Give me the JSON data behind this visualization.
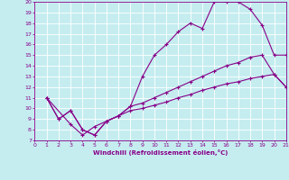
{
  "xlabel": "Windchill (Refroidissement éolien,°C)",
  "bg_color": "#c5edf0",
  "line_color": "#880088",
  "grid_color": "#ffffff",
  "xlim": [
    0,
    21
  ],
  "ylim": [
    7,
    20
  ],
  "xticks": [
    0,
    1,
    2,
    3,
    4,
    5,
    6,
    7,
    8,
    9,
    10,
    11,
    12,
    13,
    14,
    15,
    16,
    17,
    18,
    19,
    20,
    21
  ],
  "yticks": [
    7,
    8,
    9,
    10,
    11,
    12,
    13,
    14,
    15,
    16,
    17,
    18,
    19,
    20
  ],
  "series1_x": [
    1,
    2,
    3,
    4,
    5,
    6,
    7,
    8,
    9,
    10,
    11,
    12,
    13,
    14,
    15,
    16,
    17,
    18,
    19,
    20,
    21
  ],
  "series1_y": [
    11.0,
    9.0,
    9.8,
    8.0,
    7.5,
    8.8,
    9.3,
    10.2,
    13.0,
    15.0,
    16.0,
    17.2,
    18.0,
    17.5,
    20.0,
    20.0,
    20.0,
    19.3,
    17.8,
    15.0,
    15.0
  ],
  "series2_x": [
    1,
    2,
    3,
    4,
    5,
    6,
    7,
    8,
    9,
    10,
    11,
    12,
    13,
    14,
    15,
    16,
    17,
    18,
    19,
    20,
    21
  ],
  "series2_y": [
    11.0,
    9.0,
    9.8,
    8.0,
    7.5,
    8.8,
    9.3,
    10.2,
    10.5,
    11.0,
    11.5,
    12.0,
    12.5,
    13.0,
    13.5,
    14.0,
    14.3,
    14.8,
    15.0,
    13.2,
    12.0
  ],
  "series3_x": [
    1,
    3,
    4,
    5,
    6,
    7,
    8,
    9,
    10,
    11,
    12,
    13,
    14,
    15,
    16,
    17,
    18,
    19,
    20,
    21
  ],
  "series3_y": [
    11.0,
    8.5,
    7.5,
    8.3,
    8.8,
    9.3,
    9.8,
    10.0,
    10.3,
    10.6,
    11.0,
    11.3,
    11.7,
    12.0,
    12.3,
    12.5,
    12.8,
    13.0,
    13.2,
    12.0
  ]
}
